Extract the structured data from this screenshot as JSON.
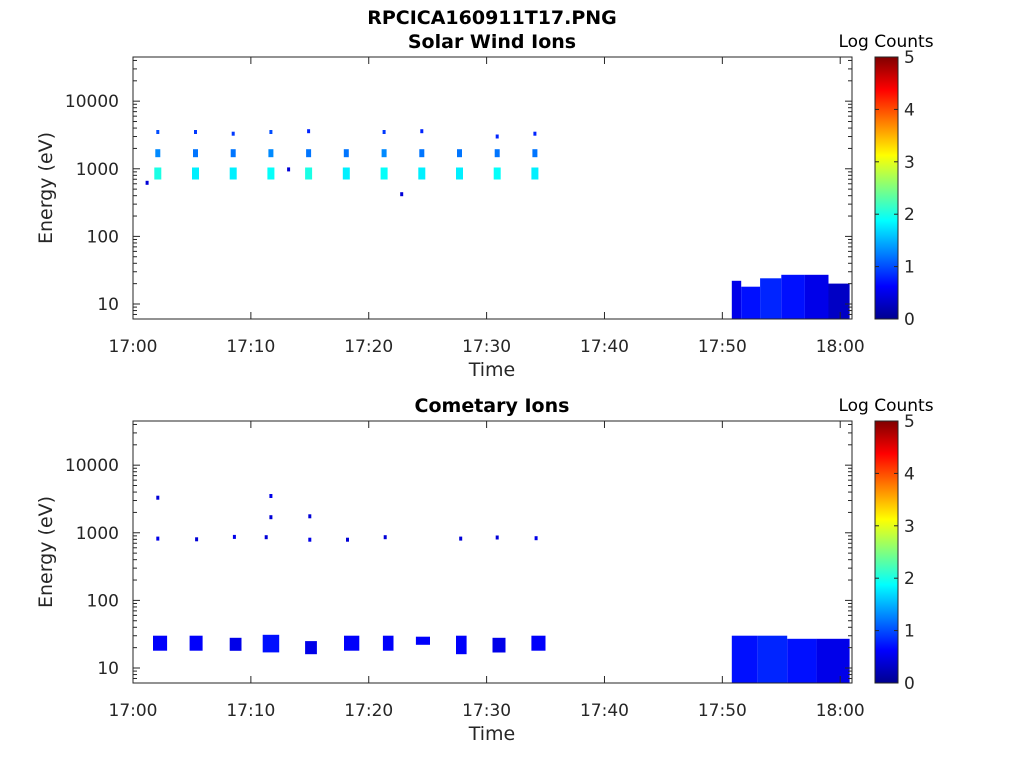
{
  "figure": {
    "title": "RPCICA160911T17.PNG"
  },
  "colorbar": {
    "label": "Log Counts",
    "ticks": [
      "0",
      "1",
      "2",
      "3",
      "4",
      "5"
    ]
  },
  "chart_data": [
    {
      "type": "heatmap",
      "title": "Solar Wind Ions",
      "xlabel": "Time",
      "ylabel": "Energy (eV)",
      "x_ticks": [
        "17:00",
        "17:10",
        "17:20",
        "17:30",
        "17:40",
        "17:50",
        "18:00"
      ],
      "y_ticks": [
        "10",
        "100",
        "1000",
        "10000"
      ],
      "y_scale": "log",
      "xlim": [
        0,
        61
      ],
      "ylim": [
        6,
        45000
      ],
      "color_scale": {
        "label": "Log Counts",
        "min": 0,
        "max": 5,
        "colormap": "jet"
      },
      "points": [
        {
          "t": 2.1,
          "e": 3500,
          "v": 1.0
        },
        {
          "t": 2.1,
          "e": 1700,
          "v": 1.3
        },
        {
          "t": 2.1,
          "e": 850,
          "v": 2.0
        },
        {
          "t": 1.2,
          "e": 620,
          "v": 0.4
        },
        {
          "t": 5.3,
          "e": 3500,
          "v": 0.9
        },
        {
          "t": 5.3,
          "e": 1700,
          "v": 1.2
        },
        {
          "t": 5.3,
          "e": 850,
          "v": 1.8
        },
        {
          "t": 8.5,
          "e": 3300,
          "v": 0.9
        },
        {
          "t": 8.5,
          "e": 1700,
          "v": 1.2
        },
        {
          "t": 8.5,
          "e": 850,
          "v": 1.8
        },
        {
          "t": 11.7,
          "e": 3500,
          "v": 1.0
        },
        {
          "t": 11.7,
          "e": 1700,
          "v": 1.3
        },
        {
          "t": 11.7,
          "e": 850,
          "v": 1.9
        },
        {
          "t": 13.2,
          "e": 980,
          "v": 0.4
        },
        {
          "t": 14.9,
          "e": 3600,
          "v": 0.8
        },
        {
          "t": 14.9,
          "e": 1700,
          "v": 1.2
        },
        {
          "t": 14.9,
          "e": 850,
          "v": 2.0
        },
        {
          "t": 18.1,
          "e": 1700,
          "v": 1.2
        },
        {
          "t": 18.1,
          "e": 850,
          "v": 1.8
        },
        {
          "t": 21.3,
          "e": 3500,
          "v": 0.9
        },
        {
          "t": 21.3,
          "e": 1700,
          "v": 1.3
        },
        {
          "t": 21.3,
          "e": 850,
          "v": 1.9
        },
        {
          "t": 22.8,
          "e": 420,
          "v": 0.4
        },
        {
          "t": 24.5,
          "e": 3600,
          "v": 0.8
        },
        {
          "t": 24.5,
          "e": 1700,
          "v": 1.2
        },
        {
          "t": 24.5,
          "e": 850,
          "v": 1.8
        },
        {
          "t": 27.7,
          "e": 1700,
          "v": 1.2
        },
        {
          "t": 27.7,
          "e": 850,
          "v": 1.8
        },
        {
          "t": 30.9,
          "e": 3000,
          "v": 0.8
        },
        {
          "t": 30.9,
          "e": 1700,
          "v": 1.2
        },
        {
          "t": 30.9,
          "e": 850,
          "v": 1.9
        },
        {
          "t": 34.1,
          "e": 3300,
          "v": 0.8
        },
        {
          "t": 34.1,
          "e": 1700,
          "v": 1.2
        },
        {
          "t": 34.1,
          "e": 850,
          "v": 1.8
        }
      ],
      "blocks": [
        {
          "t0": 50.8,
          "t1": 51.6,
          "e0": 6,
          "e1": 22,
          "v": 0.5
        },
        {
          "t0": 51.6,
          "t1": 53.2,
          "e0": 6,
          "e1": 18,
          "v": 0.7
        },
        {
          "t0": 53.2,
          "t1": 55.0,
          "e0": 6,
          "e1": 24,
          "v": 0.8
        },
        {
          "t0": 55.0,
          "t1": 57.0,
          "e0": 6,
          "e1": 27,
          "v": 0.7
        },
        {
          "t0": 57.0,
          "t1": 59.0,
          "e0": 6,
          "e1": 27,
          "v": 0.5
        },
        {
          "t0": 59.0,
          "t1": 60.8,
          "e0": 6,
          "e1": 20,
          "v": 0.3
        }
      ]
    },
    {
      "type": "heatmap",
      "title": "Cometary Ions",
      "xlabel": "Time",
      "ylabel": "Energy (eV)",
      "x_ticks": [
        "17:00",
        "17:10",
        "17:20",
        "17:30",
        "17:40",
        "17:50",
        "18:00"
      ],
      "y_ticks": [
        "10",
        "100",
        "1000",
        "10000"
      ],
      "y_scale": "log",
      "xlim": [
        0,
        61
      ],
      "ylim": [
        6,
        45000
      ],
      "color_scale": {
        "label": "Log Counts",
        "min": 0,
        "max": 5,
        "colormap": "jet"
      },
      "points": [
        {
          "t": 2.1,
          "e": 3300,
          "v": 0.4
        },
        {
          "t": 2.1,
          "e": 820,
          "v": 0.5
        },
        {
          "t": 5.4,
          "e": 800,
          "v": 0.4
        },
        {
          "t": 8.6,
          "e": 870,
          "v": 0.5
        },
        {
          "t": 11.7,
          "e": 3500,
          "v": 0.5
        },
        {
          "t": 11.7,
          "e": 1700,
          "v": 0.4
        },
        {
          "t": 11.3,
          "e": 860,
          "v": 0.4
        },
        {
          "t": 15.0,
          "e": 1750,
          "v": 0.4
        },
        {
          "t": 15.0,
          "e": 790,
          "v": 0.5
        },
        {
          "t": 18.2,
          "e": 790,
          "v": 0.4
        },
        {
          "t": 21.4,
          "e": 860,
          "v": 0.4
        },
        {
          "t": 27.8,
          "e": 820,
          "v": 0.4
        },
        {
          "t": 30.9,
          "e": 850,
          "v": 0.4
        },
        {
          "t": 34.2,
          "e": 830,
          "v": 0.5
        }
      ],
      "blocks": [
        {
          "t0": 1.7,
          "t1": 2.9,
          "e0": 18,
          "e1": 30,
          "v": 0.6
        },
        {
          "t0": 4.8,
          "t1": 5.9,
          "e0": 18,
          "e1": 30,
          "v": 0.6
        },
        {
          "t0": 8.2,
          "t1": 9.2,
          "e0": 18,
          "e1": 28,
          "v": 0.5
        },
        {
          "t0": 11.0,
          "t1": 12.4,
          "e0": 17,
          "e1": 31,
          "v": 0.7
        },
        {
          "t0": 14.6,
          "t1": 15.6,
          "e0": 16,
          "e1": 25,
          "v": 0.5
        },
        {
          "t0": 17.9,
          "t1": 19.2,
          "e0": 18,
          "e1": 30,
          "v": 0.6
        },
        {
          "t0": 21.2,
          "t1": 22.1,
          "e0": 18,
          "e1": 30,
          "v": 0.6
        },
        {
          "t0": 24.0,
          "t1": 25.2,
          "e0": 22,
          "e1": 29,
          "v": 0.6
        },
        {
          "t0": 27.4,
          "t1": 28.3,
          "e0": 16,
          "e1": 30,
          "v": 0.6
        },
        {
          "t0": 30.5,
          "t1": 31.6,
          "e0": 17,
          "e1": 28,
          "v": 0.5
        },
        {
          "t0": 33.8,
          "t1": 35.0,
          "e0": 18,
          "e1": 30,
          "v": 0.6
        },
        {
          "t0": 50.8,
          "t1": 53.0,
          "e0": 6,
          "e1": 30,
          "v": 0.7
        },
        {
          "t0": 53.0,
          "t1": 55.5,
          "e0": 6,
          "e1": 30,
          "v": 0.8
        },
        {
          "t0": 55.5,
          "t1": 58.0,
          "e0": 6,
          "e1": 27,
          "v": 0.7
        },
        {
          "t0": 58.0,
          "t1": 60.8,
          "e0": 6,
          "e1": 27,
          "v": 0.5
        }
      ]
    }
  ]
}
